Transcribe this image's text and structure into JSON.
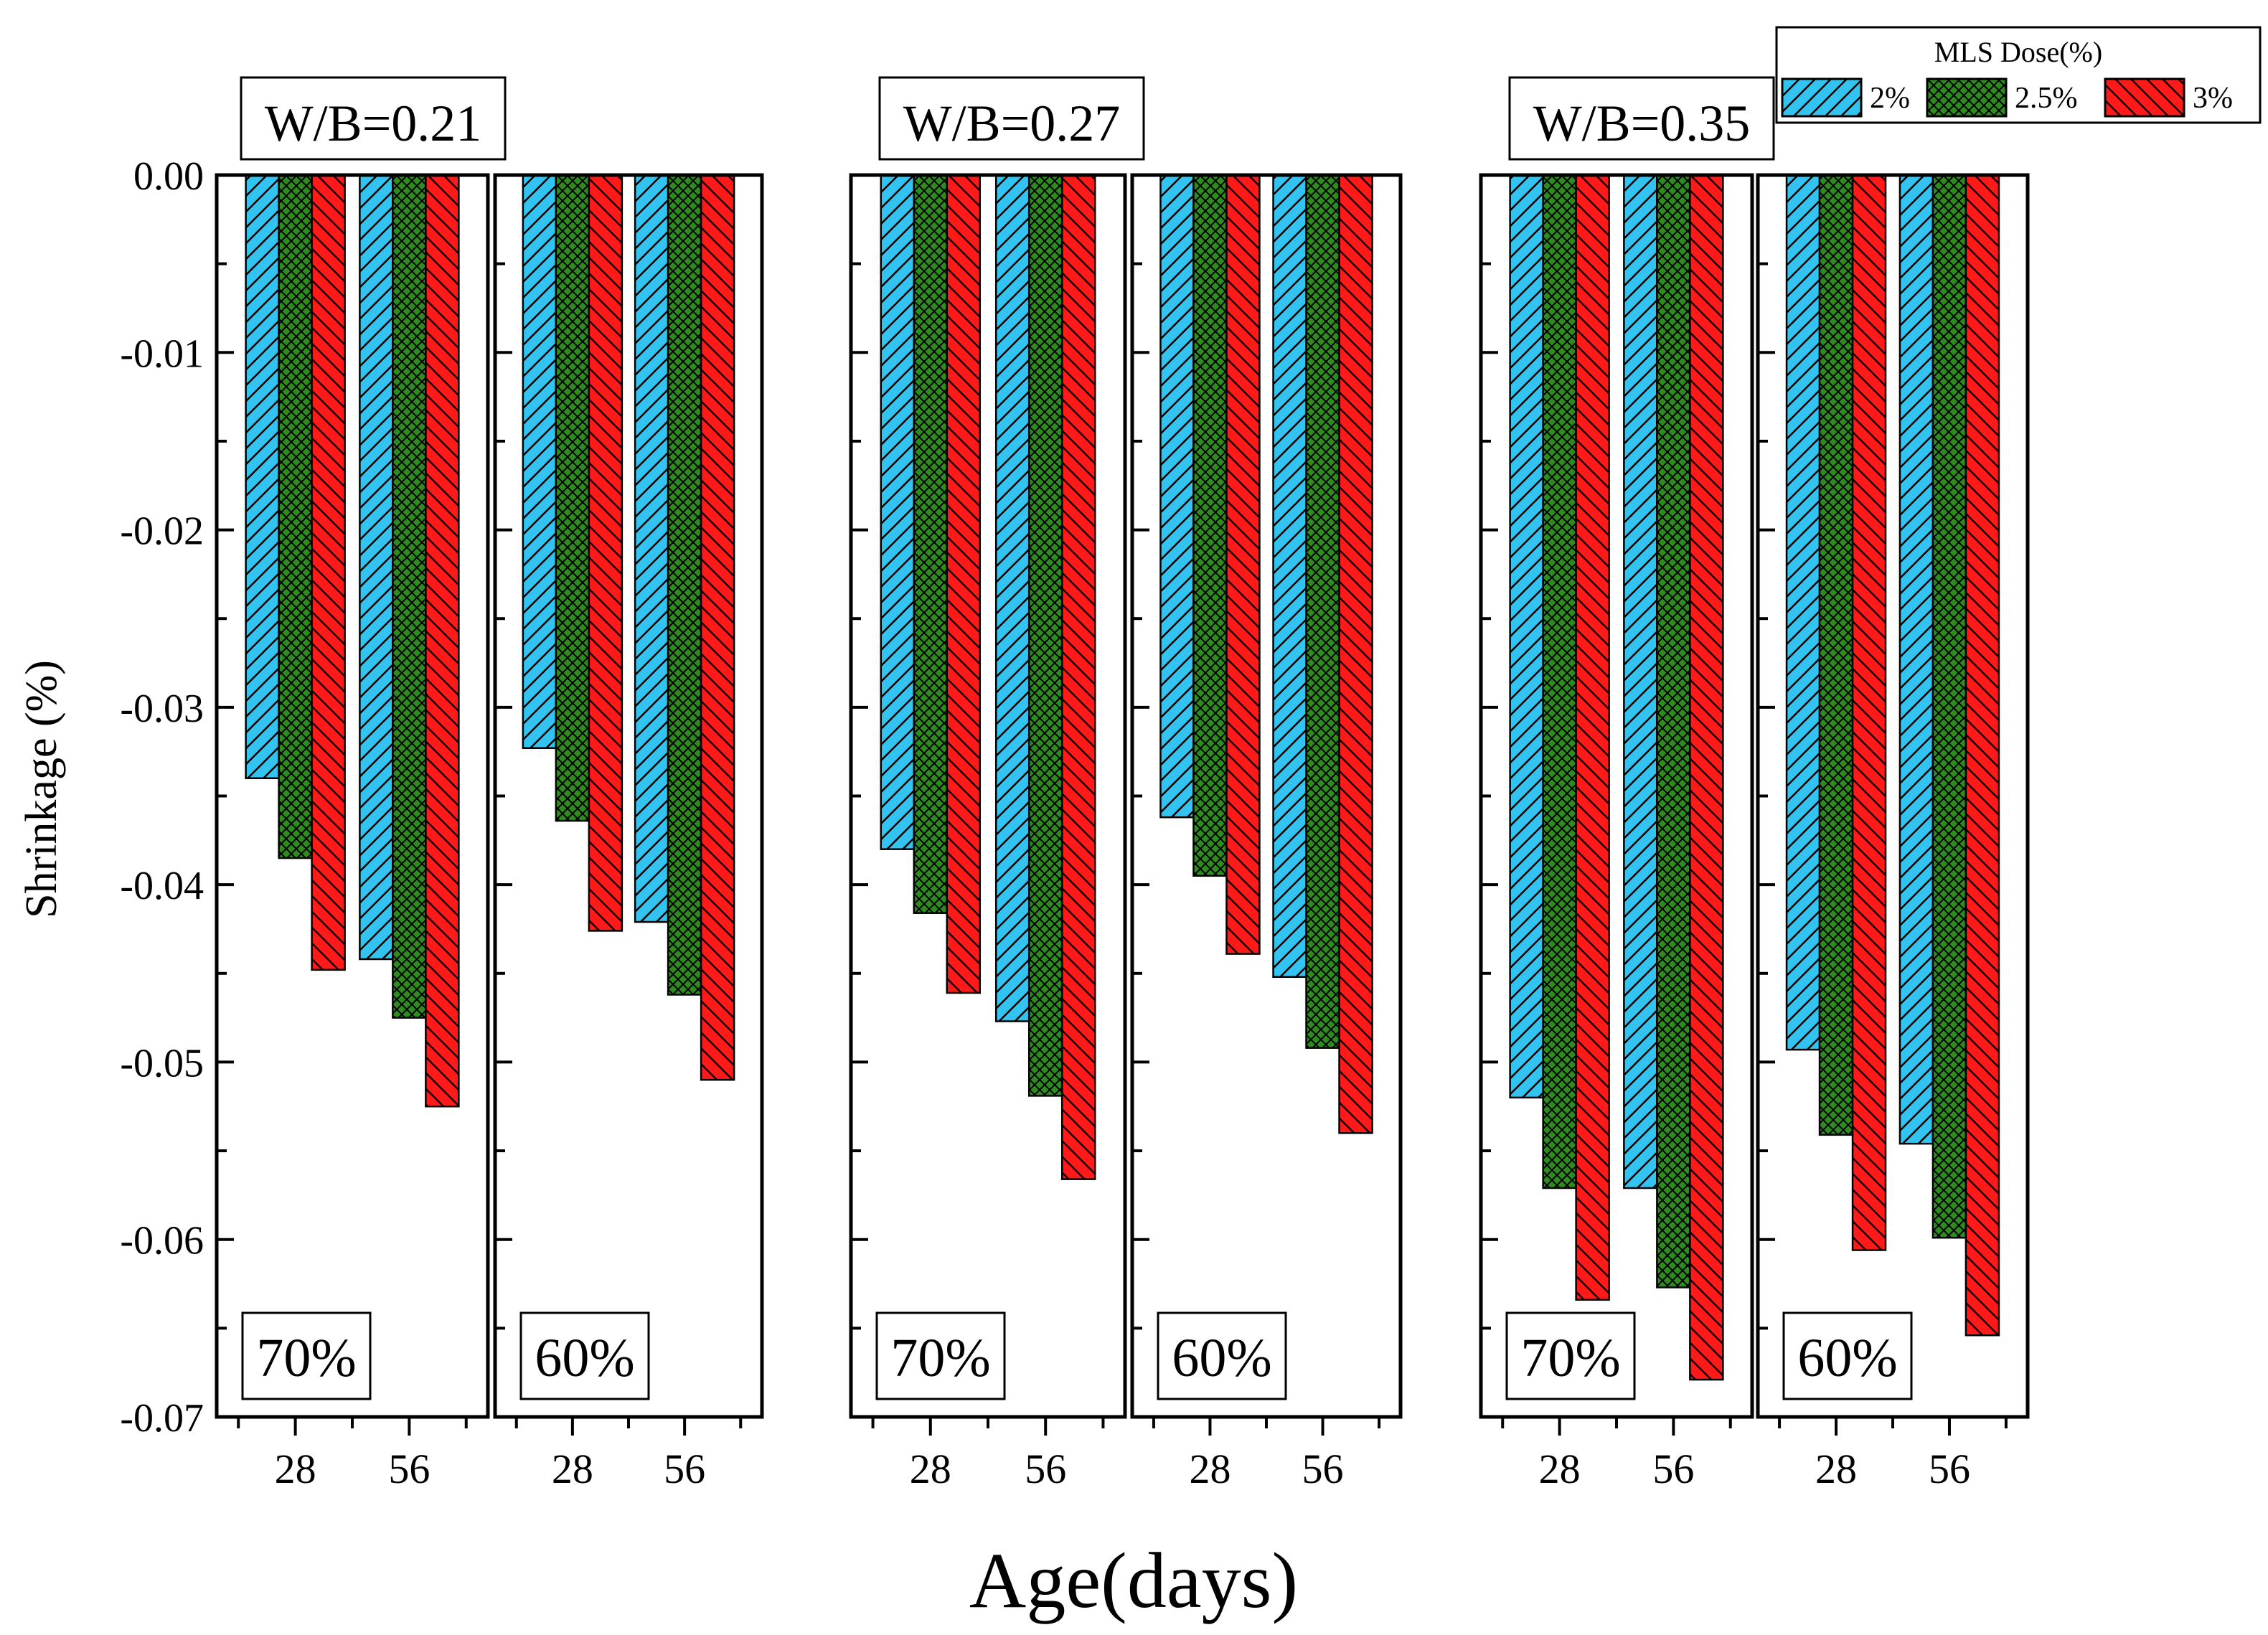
{
  "chart_data": {
    "type": "bar",
    "ylabel": "Shrinkage (%)",
    "xlabel": "Age(days)",
    "ylim": [
      -0.07,
      0
    ],
    "yticks": [
      "0.00",
      "-0.01",
      "-0.02",
      "-0.03",
      "-0.04",
      "-0.05",
      "-0.06",
      "-0.07"
    ],
    "legend": {
      "title": "MLS Dose(%)",
      "position": "top-right",
      "entries": [
        {
          "name": "2%",
          "color": "#33c3f0",
          "pattern": "hatch-forward"
        },
        {
          "name": "2.5%",
          "color": "#2e8b1e",
          "pattern": "crosshatch"
        },
        {
          "name": "3%",
          "color": "#ff1a1a",
          "pattern": "hatch-back"
        }
      ]
    },
    "groups": [
      {
        "label": "W/B=0.21",
        "panels": [
          {
            "label": "70%",
            "categories": [
              "28",
              "56"
            ],
            "series": [
              {
                "name": "2%",
                "values": [
                  -0.034,
                  -0.0442
                ]
              },
              {
                "name": "2.5%",
                "values": [
                  -0.0385,
                  -0.0475
                ]
              },
              {
                "name": "3%",
                "values": [
                  -0.0448,
                  -0.0525
                ]
              }
            ]
          },
          {
            "label": "60%",
            "categories": [
              "28",
              "56"
            ],
            "series": [
              {
                "name": "2%",
                "values": [
                  -0.0323,
                  -0.0421
                ]
              },
              {
                "name": "2.5%",
                "values": [
                  -0.0364,
                  -0.0462
                ]
              },
              {
                "name": "3%",
                "values": [
                  -0.0426,
                  -0.051
                ]
              }
            ]
          }
        ]
      },
      {
        "label": "W/B=0.27",
        "panels": [
          {
            "label": "70%",
            "categories": [
              "28",
              "56"
            ],
            "series": [
              {
                "name": "2%",
                "values": [
                  -0.038,
                  -0.0477
                ]
              },
              {
                "name": "2.5%",
                "values": [
                  -0.0416,
                  -0.0519
                ]
              },
              {
                "name": "3%",
                "values": [
                  -0.0461,
                  -0.0566
                ]
              }
            ]
          },
          {
            "label": "60%",
            "categories": [
              "28",
              "56"
            ],
            "series": [
              {
                "name": "2%",
                "values": [
                  -0.0362,
                  -0.0452
                ]
              },
              {
                "name": "2.5%",
                "values": [
                  -0.0395,
                  -0.0492
                ]
              },
              {
                "name": "3%",
                "values": [
                  -0.0439,
                  -0.054
                ]
              }
            ]
          }
        ]
      },
      {
        "label": "W/B=0.35",
        "panels": [
          {
            "label": "70%",
            "categories": [
              "28",
              "56"
            ],
            "series": [
              {
                "name": "2%",
                "values": [
                  -0.052,
                  -0.0571
                ]
              },
              {
                "name": "2.5%",
                "values": [
                  -0.0571,
                  -0.0627
                ]
              },
              {
                "name": "3%",
                "values": [
                  -0.0634,
                  -0.0679
                ]
              }
            ]
          },
          {
            "label": "60%",
            "categories": [
              "28",
              "56"
            ],
            "series": [
              {
                "name": "2%",
                "values": [
                  -0.0493,
                  -0.0546
                ]
              },
              {
                "name": "2.5%",
                "values": [
                  -0.0541,
                  -0.0599
                ]
              },
              {
                "name": "3%",
                "values": [
                  -0.0606,
                  -0.0654
                ]
              }
            ]
          }
        ]
      }
    ]
  }
}
